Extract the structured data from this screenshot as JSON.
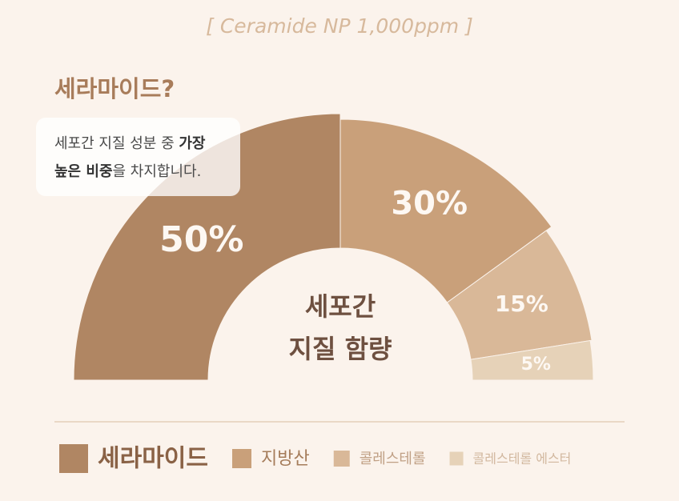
{
  "chart_data": {
    "type": "pie",
    "title": "[ Ceramide NP 1,000ppm ]",
    "subtitle": "세라마이드?",
    "tooltip": {
      "lines": [
        [
          {
            "text": "세포간 지질 성분 중 ",
            "bold": false
          },
          {
            "text": "가장",
            "bold": true
          }
        ],
        [
          {
            "text": "높은 비중",
            "bold": true
          },
          {
            "text": "을 차지합니다.",
            "bold": false
          }
        ]
      ]
    },
    "center_label": [
      "세포간",
      "지질 함량"
    ],
    "categories": [
      "세라마이드",
      "지방산",
      "콜레스테롤",
      "콜레스테롤 에스터"
    ],
    "values": [
      50,
      30,
      15,
      5
    ],
    "value_labels": [
      "50%",
      "30%",
      "15%",
      "5%"
    ],
    "colors": [
      "#b08663",
      "#c9a07a",
      "#d9b898",
      "#e6d2b8"
    ]
  }
}
